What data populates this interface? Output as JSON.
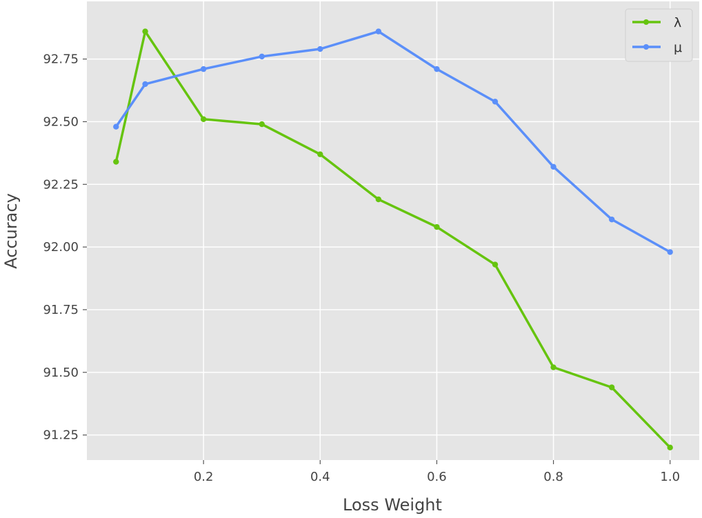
{
  "chart_data": {
    "type": "line",
    "title": "",
    "xlabel": "Loss Weight",
    "ylabel": "Accuracy",
    "xlim": [
      0.0,
      1.05
    ],
    "ylim": [
      91.15,
      92.98
    ],
    "xticks": [
      0.2,
      0.4,
      0.6,
      0.8,
      1.0
    ],
    "xtick_labels": [
      "0.2",
      "0.4",
      "0.6",
      "0.8",
      "1.0"
    ],
    "yticks": [
      91.25,
      91.5,
      91.75,
      92.0,
      92.25,
      92.5,
      92.75
    ],
    "ytick_labels": [
      "91.25",
      "91.50",
      "91.75",
      "92.00",
      "92.25",
      "92.50",
      "92.75"
    ],
    "grid": true,
    "legend_position": "top-right",
    "series": [
      {
        "name": "λ",
        "color": "#66c40f",
        "x": [
          0.05,
          0.1,
          0.2,
          0.3,
          0.4,
          0.5,
          0.6,
          0.7,
          0.8,
          0.9,
          1.0
        ],
        "y": [
          92.34,
          92.86,
          92.51,
          92.49,
          92.37,
          92.19,
          92.08,
          91.93,
          91.52,
          91.44,
          91.2
        ]
      },
      {
        "name": "μ",
        "color": "#5b8ff9",
        "x": [
          0.05,
          0.1,
          0.2,
          0.3,
          0.4,
          0.5,
          0.6,
          0.7,
          0.8,
          0.9,
          1.0
        ],
        "y": [
          92.48,
          92.65,
          92.71,
          92.76,
          92.79,
          92.86,
          92.71,
          92.58,
          92.32,
          92.11,
          91.98
        ]
      }
    ]
  }
}
